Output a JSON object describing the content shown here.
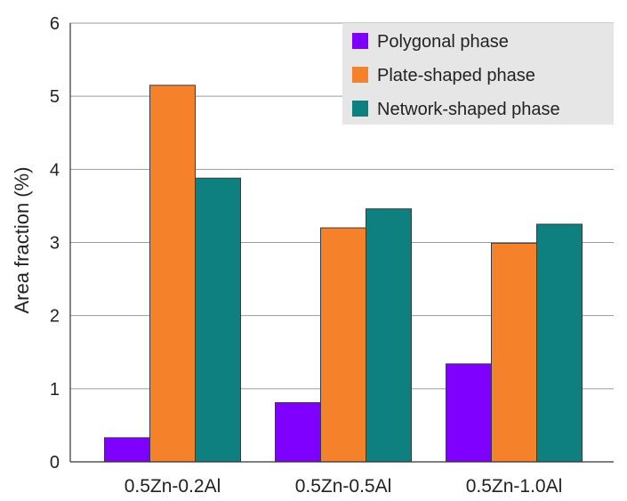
{
  "chart_data": {
    "type": "bar",
    "title": "",
    "xlabel": "",
    "ylabel": "Area fraction (%)",
    "ylim": [
      0,
      6
    ],
    "yticks": [
      0,
      1,
      2,
      3,
      4,
      5,
      6
    ],
    "grid": true,
    "legend_position": "top-right",
    "categories": [
      "0.5Zn-0.2Al",
      "0.5Zn-0.5Al",
      "0.5Zn-1.0Al"
    ],
    "series": [
      {
        "name": "Polygonal phase",
        "color": "#8000ff",
        "values": [
          0.33,
          0.81,
          1.34
        ]
      },
      {
        "name": "Plate-shaped phase",
        "color": "#f5812a",
        "values": [
          5.15,
          3.2,
          2.99
        ]
      },
      {
        "name": "Network-shaped phase",
        "color": "#0e8080",
        "values": [
          3.88,
          3.46,
          3.25
        ]
      }
    ]
  }
}
